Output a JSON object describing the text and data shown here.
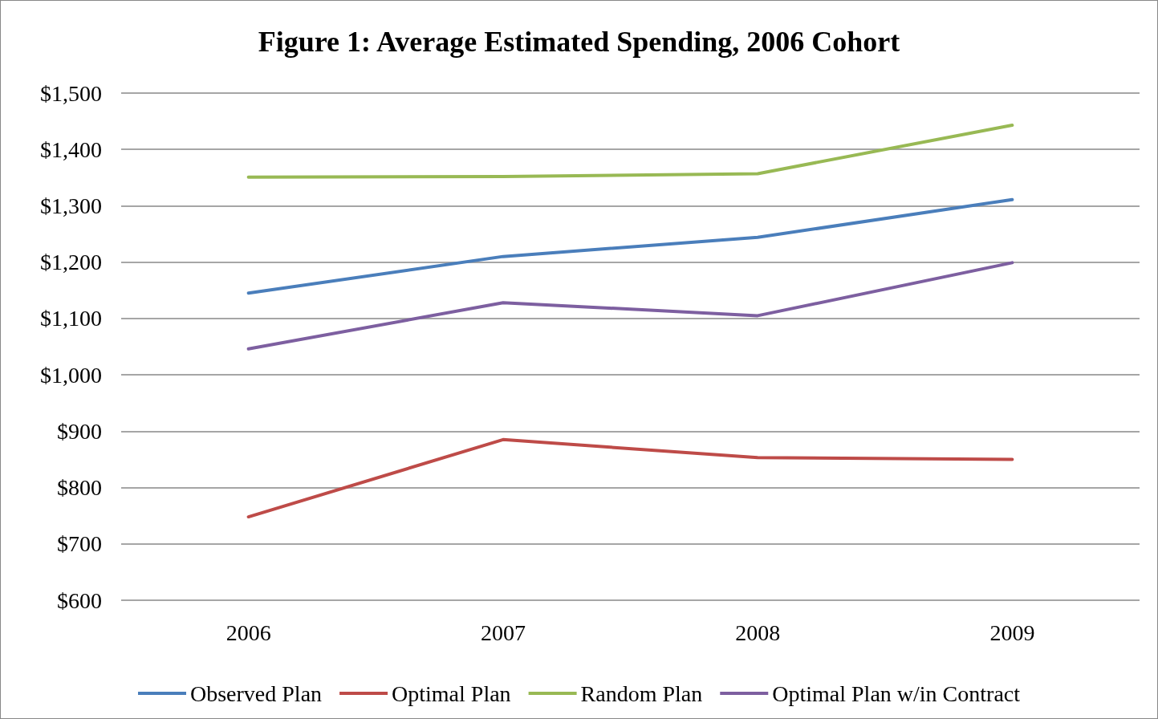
{
  "chart_data": {
    "type": "line",
    "title": "Figure 1: Average Estimated Spending, 2006 Cohort",
    "categories": [
      "2006",
      "2007",
      "2008",
      "2009"
    ],
    "series": [
      {
        "name": "Observed Plan",
        "color": "#4a7ebb",
        "values": [
          1145,
          1210,
          1244,
          1311
        ]
      },
      {
        "name": "Optimal Plan",
        "color": "#be4b48",
        "values": [
          748,
          885,
          853,
          850
        ]
      },
      {
        "name": "Random Plan",
        "color": "#98b954",
        "values": [
          1351,
          1352,
          1357,
          1443
        ]
      },
      {
        "name": "Optimal Plan w/in Contract",
        "color": "#7d5fa0",
        "values": [
          1046,
          1128,
          1105,
          1199
        ]
      }
    ],
    "ylim": [
      600,
      1500
    ],
    "yticks": [
      {
        "value": 600,
        "label": "$600"
      },
      {
        "value": 700,
        "label": "$700"
      },
      {
        "value": 800,
        "label": "$800"
      },
      {
        "value": 900,
        "label": "$900"
      },
      {
        "value": 1000,
        "label": "$1,000"
      },
      {
        "value": 1100,
        "label": "$1,100"
      },
      {
        "value": 1200,
        "label": "$1,200"
      },
      {
        "value": 1300,
        "label": "$1,300"
      },
      {
        "value": 1400,
        "label": "$1,400"
      },
      {
        "value": 1500,
        "label": "$1,500"
      }
    ],
    "grid": "y",
    "legend": "bottom",
    "marker": "none",
    "line_style": "solid"
  }
}
